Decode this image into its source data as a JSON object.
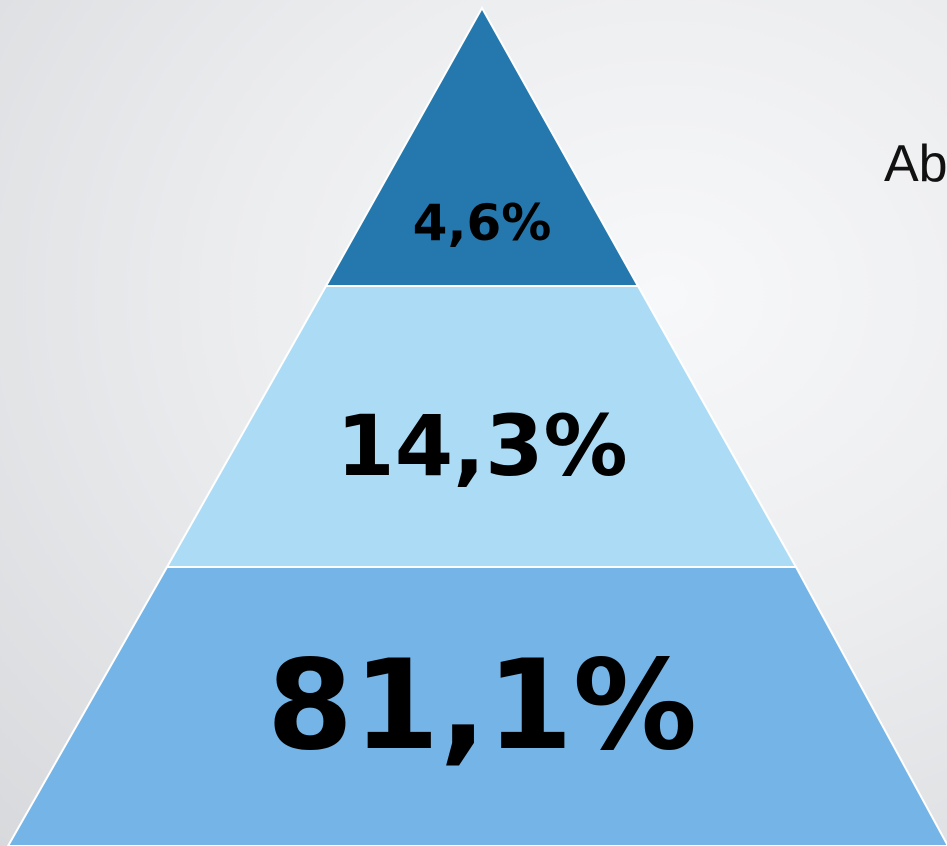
{
  "pyramid": {
    "tiers": [
      {
        "label": "4,6%",
        "value": 4.6,
        "color": "#2478ad"
      },
      {
        "label": "14,3%",
        "value": 14.3,
        "color": "#acdcf5"
      },
      {
        "label": "81,1%",
        "value": 81.1,
        "color": "#74b4e6"
      }
    ],
    "edge_color": "#ffffff"
  },
  "side_text": "Ab"
}
